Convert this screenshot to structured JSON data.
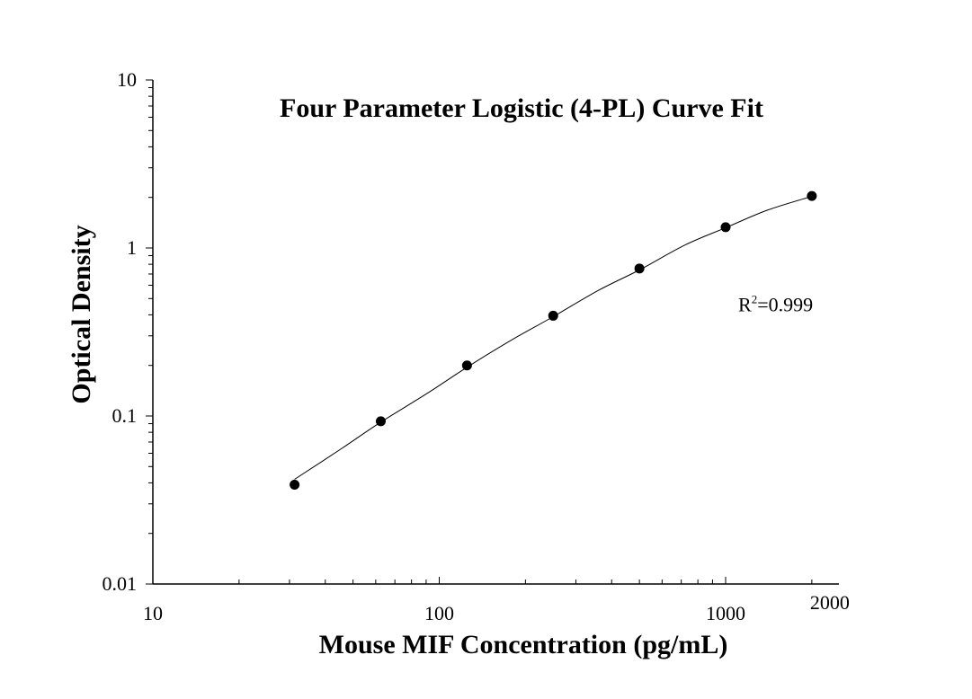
{
  "chart_data": {
    "type": "scatter",
    "title": "Four Parameter Logistic (4-PL) Curve Fit",
    "xlabel": "Mouse MIF Concentration (pg/mL)",
    "ylabel": "Optical Density",
    "xscale": "log",
    "yscale": "log",
    "xlim": [
      10,
      2000
    ],
    "ylim": [
      0.01,
      10
    ],
    "x_ticks": [
      {
        "value": 10,
        "label": "10"
      },
      {
        "value": 100,
        "label": "100"
      },
      {
        "value": 1000,
        "label": "1000"
      },
      {
        "value": 2000,
        "label": "2000"
      }
    ],
    "y_ticks": [
      {
        "value": 0.01,
        "label": "0.01"
      },
      {
        "value": 0.1,
        "label": "0.1"
      },
      {
        "value": 1,
        "label": "1"
      },
      {
        "value": 10,
        "label": "10"
      }
    ],
    "grid": false,
    "series": [
      {
        "x": [
          31.25,
          62.5,
          125,
          250,
          500,
          1000,
          2000
        ],
        "y": [
          0.039,
          0.093,
          0.2,
          0.395,
          0.755,
          1.33,
          2.04
        ],
        "marker": "filled-circle",
        "color": "#000000"
      }
    ],
    "fit_curve": {
      "x": [
        31.25,
        45,
        62.5,
        90,
        125,
        180,
        250,
        360,
        500,
        720,
        1000,
        1400,
        2000
      ],
      "y": [
        0.042,
        0.063,
        0.092,
        0.135,
        0.195,
        0.285,
        0.39,
        0.56,
        0.74,
        1.04,
        1.32,
        1.68,
        2.03
      ],
      "color": "#000000"
    },
    "annotations": [
      {
        "base": "R",
        "superscript": "2",
        "text": "=0.999",
        "x": 1000,
        "y": 0.42
      }
    ]
  }
}
